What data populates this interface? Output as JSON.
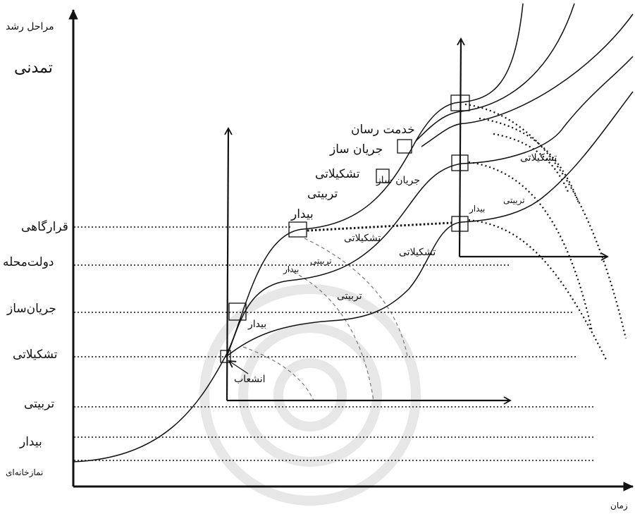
{
  "axes": {
    "y_title": "مراحل رشد",
    "x_title": "زمان"
  },
  "stages": {
    "tamadoni": "تمدنی",
    "gharargahi": "قرارگاهی",
    "dolat_mahalle": "دولت‌محله",
    "jaryan_saz": "جریان‌ساز",
    "tashkilati": "تشکیلاتی",
    "tarbiyati": "تربیتی",
    "bidar": "بیدار",
    "namazkhaneh": "نمازخانه‌ای"
  },
  "curve_labels": {
    "khedmat_resan": "خدمت رسان",
    "jaryan_saz_1": "جریان ساز",
    "tashkilati_1": "تشکیلاتی",
    "jaryan_saz_2": "جریان ساز",
    "tarbiyati_1": "تربیتی",
    "bidar_1": "بیدار",
    "tashkilati_2": "تشکیلاتی",
    "tarbiyati_2": "تربیتی",
    "bidar_2": "بیدار",
    "tashkilati_3": "تشکیلاتی",
    "tarbiyati_3": "تربیتی",
    "bidar_3": "بیدار",
    "enshe_ab": "انشعاب",
    "tashkilati_4": "تشکیلاتی",
    "tarbiyati_4": "تربیتی",
    "bidar_4": "بیدار"
  }
}
